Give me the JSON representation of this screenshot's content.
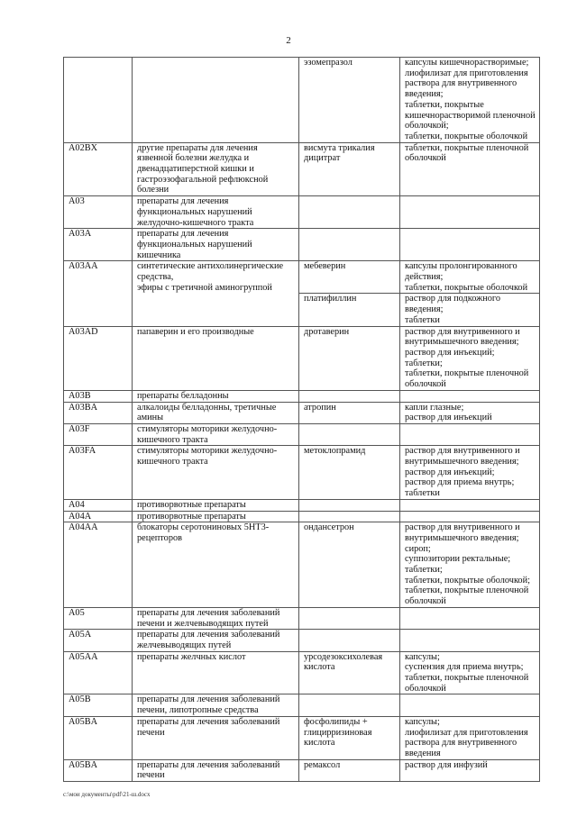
{
  "page_number": "2",
  "rows": [
    {
      "code": "",
      "group": "",
      "drug": "эзомепразол",
      "form": "капсулы кишечнорастворимые;\nлиофилизат для приготовления раствора для внутривенного введения;\nтаблетки, покрытые кишечнорастворимой пленочной оболочкой;\nтаблетки, покрытые оболочкой"
    },
    {
      "code": "A02BX",
      "group": "другие препараты для лечения язвенной болезни желудка и двенадцатиперстной кишки и гастроэзофагальной рефлюксной болезни",
      "drug": "висмута трикалия дицитрат",
      "form": "таблетки, покрытые пленочной оболочкой"
    },
    {
      "code": "A03",
      "group": "препараты для лечения функциональных нарушений желудочно-кишечного тракта",
      "drug": "",
      "form": ""
    },
    {
      "code": "A03A",
      "group": "препараты для лечения функциональных нарушений кишечника",
      "drug": "",
      "form": ""
    },
    {
      "code": "A03AA",
      "group": "синтетические антихолинергические средства,\nэфиры с третичной аминогруппой",
      "drug": "мебеверин",
      "form": "капсулы пролонгированного действия;\nтаблетки, покрытые оболочкой"
    },
    {
      "drug": "платифиллин",
      "form": "раствор для подкожного введения;\nтаблетки"
    },
    {
      "code": "A03AD",
      "group": "папаверин и его производные",
      "drug": "дротаверин",
      "form": "раствор для внутривенного и внутримышечного введения;\nраствор для инъекций;\nтаблетки;\nтаблетки, покрытые пленочной оболочкой"
    },
    {
      "code": "A03B",
      "group": "препараты белладонны",
      "drug": "",
      "form": ""
    },
    {
      "code": "A03BA",
      "group": "алкалоиды белладонны, третичные амины",
      "drug": "атропин",
      "form": "капли глазные;\nраствор для инъекций"
    },
    {
      "code": "A03F",
      "group": "стимуляторы моторики желудочно-кишечного тракта",
      "drug": "",
      "form": ""
    },
    {
      "code": "A03FA",
      "group": "стимуляторы моторики желудочно-кишечного тракта",
      "drug": "метоклопрамид",
      "form": "раствор для внутривенного и внутримышечного введения;\nраствор для инъекций;\nраствор для приема внутрь;\nтаблетки"
    },
    {
      "code": "A04",
      "group": "противорвотные препараты",
      "drug": "",
      "form": ""
    },
    {
      "code": "A04A",
      "group": "противорвотные препараты",
      "drug": "",
      "form": ""
    },
    {
      "code": "A04AA",
      "group": "блокаторы серотониновых 5HT3-рецепторов",
      "drug": "ондансетрон",
      "form": "раствор для внутривенного и внутримышечного введения;\nсироп;\nсуппозитории ректальные;\nтаблетки;\nтаблетки, покрытые оболочкой;\nтаблетки, покрытые пленочной оболочкой"
    },
    {
      "code": "A05",
      "group": "препараты для лечения заболеваний печени и желчевыводящих путей",
      "drug": "",
      "form": ""
    },
    {
      "code": "A05A",
      "group": "препараты для лечения заболеваний желчевыводящих путей",
      "drug": "",
      "form": ""
    },
    {
      "code": "A05AA",
      "group": "препараты желчных кислот",
      "drug": "урсодезоксихолевая кислота",
      "form": "капсулы;\nсуспензия для приема внутрь;\nтаблетки, покрытые пленочной оболочкой"
    },
    {
      "code": "A05B",
      "group": "препараты для лечения заболеваний печени, липотропные средства",
      "drug": "",
      "form": ""
    },
    {
      "code": "A05BA",
      "group": "препараты для лечения заболеваний печени",
      "drug": "фосфолипиды + глицирризиновая кислота",
      "form": "капсулы;\nлиофилизат для приготовления раствора для внутривенного введения"
    },
    {
      "code": "A05BA",
      "group": "препараты для лечения заболеваний печени",
      "drug": "ремаксол",
      "form": "раствор для инфузий"
    }
  ],
  "footer": "c:\\мои документы\\pdf\\21-ш.docx"
}
